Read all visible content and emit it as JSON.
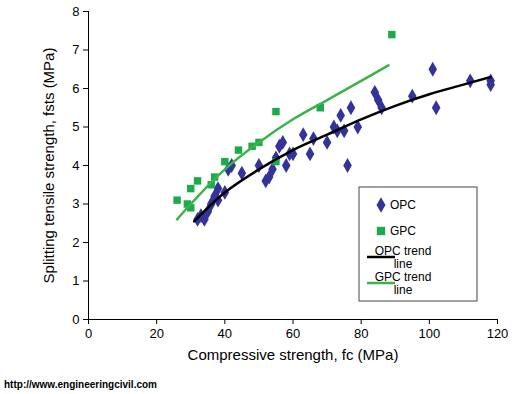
{
  "chart_data": {
    "type": "scatter",
    "xlabel": "Compressive strength, fc (MPa)",
    "ylabel": "Splitting tensile strength, fsts (MPa)",
    "annotations": [
      "http://www.engineeringcivil.com"
    ],
    "xlim": [
      0,
      120
    ],
    "xticks": [
      0,
      20,
      40,
      60,
      80,
      100,
      120
    ],
    "ylim": [
      0,
      8
    ],
    "yticks": [
      0,
      1,
      2,
      3,
      4,
      5,
      6,
      7,
      8
    ],
    "grid": false,
    "legend": "lower right",
    "series": [
      {
        "name": "OPC",
        "type": "scatter",
        "marker": "diamond",
        "color": "#33339a",
        "x": [
          32,
          33,
          34,
          35,
          36,
          37,
          38,
          38,
          40,
          41,
          42,
          45,
          50,
          52,
          53,
          54,
          55,
          56,
          57,
          58,
          59,
          60,
          63,
          65,
          66,
          70,
          72,
          73,
          74,
          75,
          76,
          77,
          79,
          84,
          85,
          86,
          95,
          101,
          102,
          112,
          118,
          118
        ],
        "values": [
          2.6,
          2.7,
          2.6,
          2.8,
          3.0,
          3.2,
          3.1,
          3.4,
          3.3,
          3.9,
          4.0,
          3.8,
          4.0,
          3.6,
          3.7,
          3.9,
          4.2,
          4.5,
          4.6,
          4.0,
          4.3,
          4.3,
          4.8,
          4.3,
          4.7,
          4.6,
          5.0,
          4.9,
          5.3,
          4.9,
          4.0,
          5.5,
          5.0,
          5.9,
          5.7,
          5.5,
          5.8,
          6.5,
          5.5,
          6.2,
          6.2,
          6.1
        ]
      },
      {
        "name": "GPC",
        "type": "scatter",
        "marker": "square",
        "color": "#1daa4b",
        "x": [
          26,
          29,
          30,
          30,
          32,
          36,
          37,
          40,
          44,
          48,
          50,
          55,
          55,
          68,
          89
        ],
        "values": [
          3.1,
          3.0,
          2.9,
          3.4,
          3.6,
          3.5,
          3.7,
          4.1,
          4.4,
          4.5,
          4.6,
          4.1,
          5.4,
          5.5,
          7.4
        ]
      },
      {
        "name": "OPC trend line",
        "type": "line",
        "line_style": "solid",
        "color": "#000000",
        "x": [
          31,
          40,
          50,
          60,
          70,
          80,
          90,
          100,
          110,
          118
        ],
        "values": [
          2.55,
          3.3,
          3.9,
          4.4,
          4.8,
          5.2,
          5.55,
          5.85,
          6.1,
          6.3
        ]
      },
      {
        "name": "GPC trend line",
        "type": "line",
        "line_style": "solid",
        "color": "#3cb34a",
        "x": [
          26,
          30,
          40,
          50,
          60,
          70,
          80,
          88
        ],
        "values": [
          2.6,
          3.0,
          3.9,
          4.6,
          5.2,
          5.7,
          6.2,
          6.6
        ]
      }
    ]
  }
}
